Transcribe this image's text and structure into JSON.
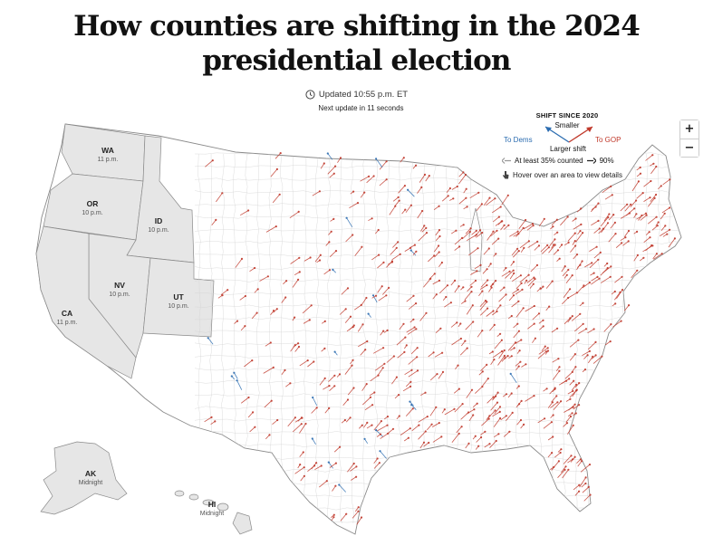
{
  "header": {
    "title_line1": "How counties are shifting in the 2024",
    "title_line2": "presidential election",
    "updated": "Updated 10:55 p.m. ET",
    "next_update": "Next update in 11 seconds"
  },
  "legend": {
    "heading": "SHIFT SINCE 2020",
    "smaller": "Smaller",
    "larger": "Larger shift",
    "to_dems": "To Dems",
    "to_gop": "To GOP",
    "counted_35": "At least 35% counted",
    "counted_90": "90%",
    "hover_hint": "Hover over an area to view details",
    "colors": {
      "dems": "#2b6cb0",
      "gop": "#c0392b",
      "closed_state": "#e6e6e6"
    },
    "icons": {
      "clock": "clock-icon",
      "pointer": "hand-pointer-icon"
    }
  },
  "zoom": {
    "in_label": "+",
    "out_label": "−"
  },
  "states_not_reporting": [
    {
      "abbr": "WA",
      "poll_close": "11 p.m."
    },
    {
      "abbr": "OR",
      "poll_close": "10 p.m."
    },
    {
      "abbr": "ID",
      "poll_close": "10 p.m."
    },
    {
      "abbr": "NV",
      "poll_close": "10 p.m."
    },
    {
      "abbr": "UT",
      "poll_close": "10 p.m."
    },
    {
      "abbr": "CA",
      "poll_close": "11 p.m."
    },
    {
      "abbr": "AK",
      "poll_close": "Midnight"
    },
    {
      "abbr": "HI",
      "poll_close": "Midnight"
    }
  ]
}
